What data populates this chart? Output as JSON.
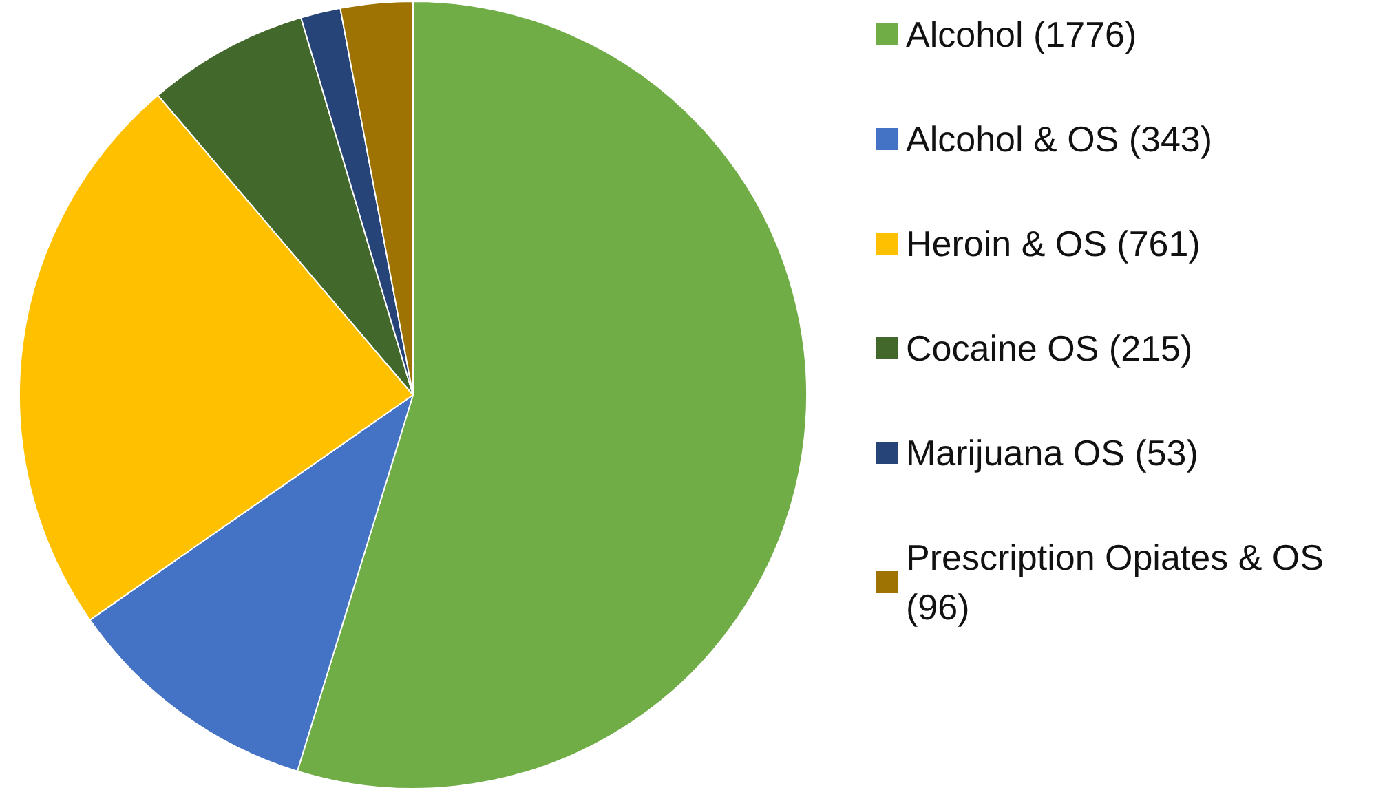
{
  "chart_data": {
    "type": "pie",
    "categories": [
      "Alcohol (1776)",
      "Alcohol & OS (343)",
      "Heroin & OS (761)",
      "Cocaine OS (215)",
      "Marijuana OS (53)",
      "Prescription Opiates & OS (96)"
    ],
    "values": [
      1776,
      343,
      761,
      215,
      53,
      96
    ],
    "colors": [
      "#70ad47",
      "#4472c4",
      "#ffc000",
      "#43682b",
      "#264478",
      "#9e7303"
    ],
    "legend": "right"
  }
}
